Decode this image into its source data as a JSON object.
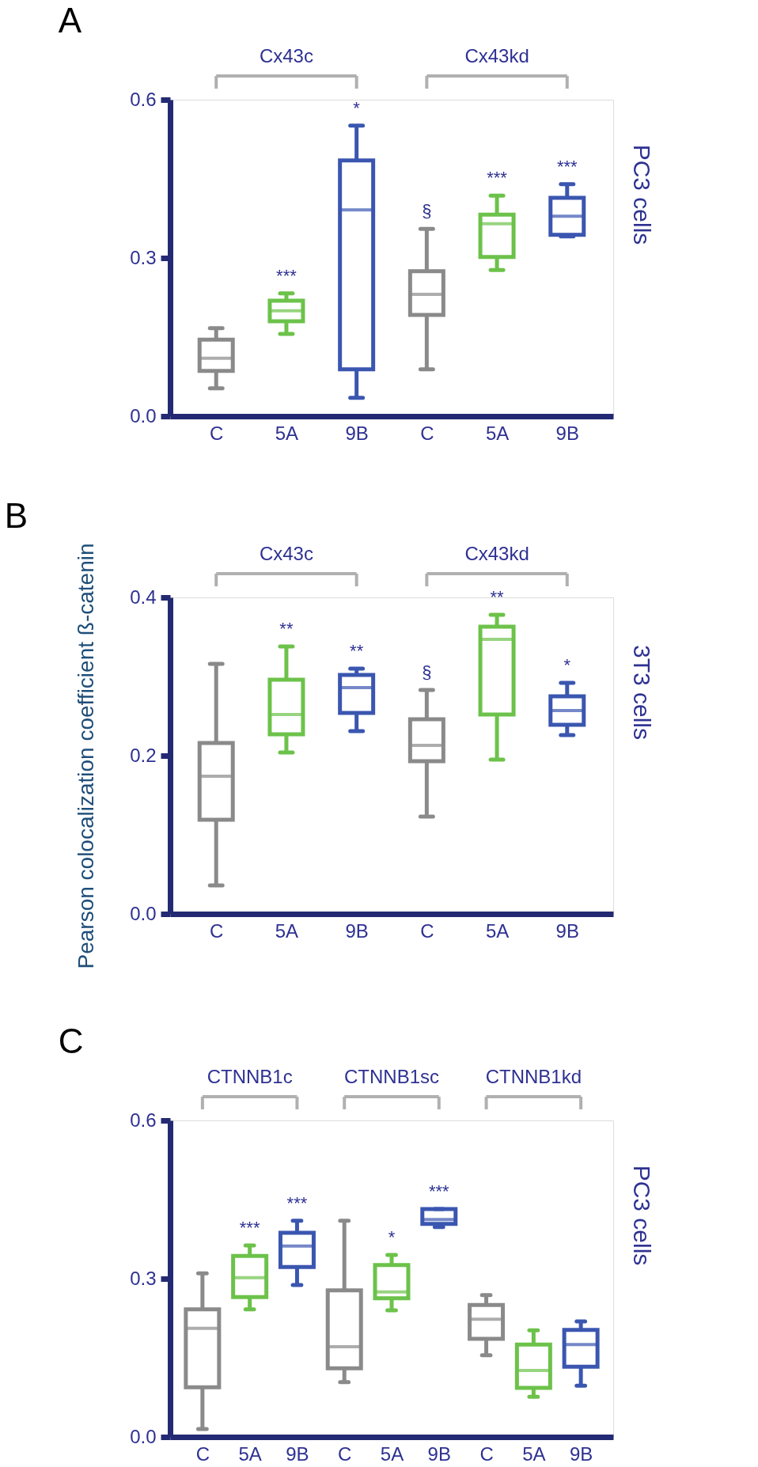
{
  "chart_data": [
    {
      "type": "box",
      "title": "A",
      "y2label": "PC3 cells",
      "categories": [
        "C",
        "5A",
        "9B",
        "C",
        "5A",
        "9B"
      ],
      "colors": [
        "#8a8a8a",
        "#6cc24a",
        "#3a56b0",
        "#8a8a8a",
        "#6cc24a",
        "#3a56b0"
      ],
      "boxes": [
        {
          "low": 0.053,
          "q1": 0.086,
          "median": 0.11,
          "q3": 0.145,
          "high": 0.167
        },
        {
          "low": 0.156,
          "q1": 0.18,
          "median": 0.2,
          "q3": 0.219,
          "high": 0.233
        },
        {
          "low": 0.035,
          "q1": 0.089,
          "median": 0.391,
          "q3": 0.485,
          "high": 0.551
        },
        {
          "low": 0.089,
          "q1": 0.192,
          "median": 0.231,
          "q3": 0.275,
          "high": 0.355
        },
        {
          "low": 0.277,
          "q1": 0.302,
          "median": 0.365,
          "q3": 0.382,
          "high": 0.418
        },
        {
          "low": 0.341,
          "q1": 0.344,
          "median": 0.379,
          "q3": 0.414,
          "high": 0.44
        }
      ],
      "value_labels": [
        null,
        "***",
        "*",
        "§",
        "***",
        "***"
      ],
      "annotations": [
        "Cx43c",
        "Cx43kd"
      ],
      "ylim": [
        0,
        0.6
      ],
      "yticks": [
        {
          "value": 0,
          "label": "0.0"
        },
        0.3,
        0.6
      ],
      "grid": false
    },
    {
      "type": "box",
      "title": "B",
      "ylabel": "Pearson colocalization coefficient ß-catenin",
      "y2label": "3T3 cells",
      "categories": [
        "C",
        "5A",
        "9B",
        "C",
        "5A",
        "9B"
      ],
      "colors": [
        "#8a8a8a",
        "#6cc24a",
        "#3a56b0",
        "#8a8a8a",
        "#6cc24a",
        "#3a56b0"
      ],
      "boxes": [
        {
          "low": 0.036,
          "q1": 0.119,
          "median": 0.174,
          "q3": 0.216,
          "high": 0.316
        },
        {
          "low": 0.204,
          "q1": 0.227,
          "median": 0.252,
          "q3": 0.296,
          "high": 0.338
        },
        {
          "low": 0.231,
          "q1": 0.254,
          "median": 0.286,
          "q3": 0.302,
          "high": 0.31
        },
        {
          "low": 0.123,
          "q1": 0.193,
          "median": 0.213,
          "q3": 0.246,
          "high": 0.283
        },
        {
          "low": 0.195,
          "q1": 0.252,
          "median": 0.347,
          "q3": 0.363,
          "high": 0.378
        },
        {
          "low": 0.226,
          "q1": 0.239,
          "median": 0.257,
          "q3": 0.275,
          "high": 0.292
        }
      ],
      "value_labels": [
        null,
        "**",
        "**",
        "§",
        "**",
        "*"
      ],
      "annotations": [
        "Cx43c",
        "Cx43kd"
      ],
      "ylim": [
        0,
        0.4
      ],
      "yticks": [
        {
          "value": 0,
          "label": "0.0"
        },
        0.2,
        0.4
      ],
      "grid": false
    },
    {
      "type": "box",
      "title": "C",
      "y2label": "PC3 cells",
      "categories": [
        "C",
        "5A",
        "9B",
        "C",
        "5A",
        "9B",
        "C",
        "5A",
        "9B"
      ],
      "colors": [
        "#8a8a8a",
        "#6cc24a",
        "#3a56b0",
        "#8a8a8a",
        "#6cc24a",
        "#3a56b0",
        "#8a8a8a",
        "#6cc24a",
        "#3a56b0"
      ],
      "boxes": [
        {
          "low": 0.015,
          "q1": 0.094,
          "median": 0.206,
          "q3": 0.242,
          "high": 0.31
        },
        {
          "low": 0.242,
          "q1": 0.265,
          "median": 0.302,
          "q3": 0.343,
          "high": 0.363
        },
        {
          "low": 0.288,
          "q1": 0.322,
          "median": 0.362,
          "q3": 0.387,
          "high": 0.41
        },
        {
          "low": 0.104,
          "q1": 0.13,
          "median": 0.171,
          "q3": 0.278,
          "high": 0.41
        },
        {
          "low": 0.24,
          "q1": 0.263,
          "median": 0.275,
          "q3": 0.326,
          "high": 0.345
        },
        {
          "low": 0.398,
          "q1": 0.404,
          "median": 0.412,
          "q3": 0.432,
          "high": 0.432
        },
        {
          "low": 0.155,
          "q1": 0.186,
          "median": 0.223,
          "q3": 0.25,
          "high": 0.269
        },
        {
          "low": 0.076,
          "q1": 0.093,
          "median": 0.126,
          "q3": 0.175,
          "high": 0.202
        },
        {
          "low": 0.097,
          "q1": 0.133,
          "median": 0.175,
          "q3": 0.203,
          "high": 0.219
        }
      ],
      "value_labels": [
        null,
        "***",
        "***",
        null,
        "*",
        "***",
        null,
        null,
        null
      ],
      "annotations": [
        "CTNNB1c",
        "CTNNB1sc",
        "CTNNB1kd"
      ],
      "ylim": [
        0,
        0.6
      ],
      "yticks": [
        {
          "value": 0,
          "label": "0.0"
        },
        0.3,
        0.6
      ],
      "grid": false
    }
  ]
}
